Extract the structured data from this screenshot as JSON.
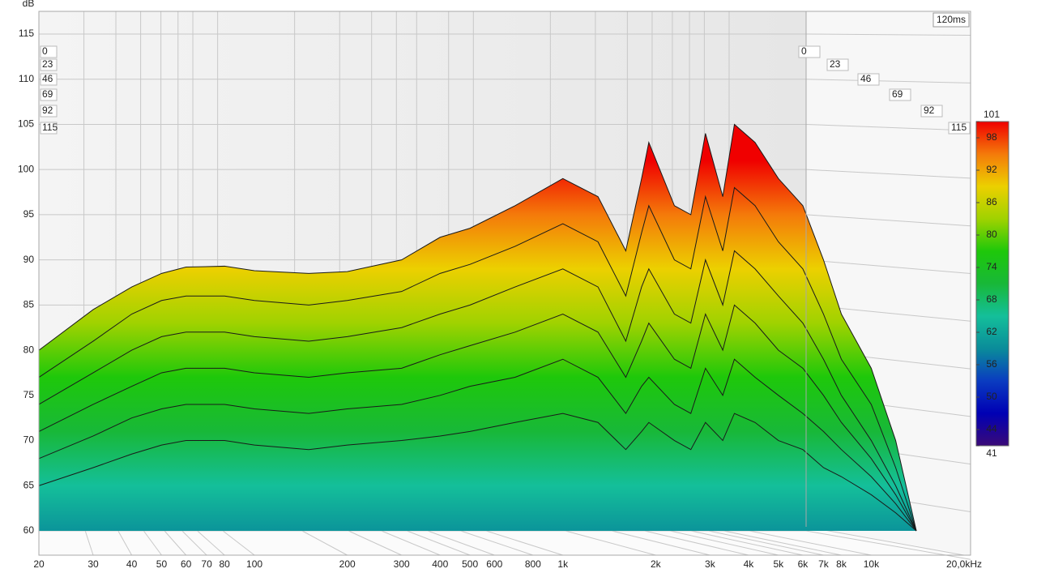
{
  "chart_data": {
    "type": "waterfall",
    "ylabel": "dB",
    "zlabel": "120ms",
    "x": [
      20,
      30,
      40,
      50,
      60,
      80,
      100,
      150,
      200,
      300,
      400,
      500,
      700,
      1000,
      1300,
      1600,
      1800,
      1900,
      2300,
      2600,
      2900,
      3300,
      3600,
      4200,
      5000,
      6000,
      7000,
      8000,
      10000,
      12000,
      14000
    ],
    "series": [
      {
        "name": "0",
        "values": [
          80,
          84.5,
          87,
          88.5,
          89.2,
          89.3,
          88.8,
          88.5,
          88.7,
          90,
          92.5,
          93.5,
          96,
          99,
          97,
          91,
          99,
          103,
          96,
          95,
          104,
          97,
          105,
          103,
          99,
          96,
          90,
          84,
          78,
          70,
          60
        ]
      },
      {
        "name": "23",
        "values": [
          77,
          81,
          84,
          85.5,
          86,
          86,
          85.5,
          85,
          85.5,
          86.5,
          88.5,
          89.5,
          91.5,
          94,
          92,
          86,
          93,
          96,
          90,
          89,
          97,
          91,
          98,
          96,
          92,
          89,
          84,
          79,
          74,
          67,
          60
        ]
      },
      {
        "name": "46",
        "values": [
          74,
          77.5,
          80,
          81.5,
          82,
          82,
          81.5,
          81,
          81.5,
          82.5,
          84,
          85,
          87,
          89,
          87,
          81,
          87,
          89,
          84,
          83,
          90,
          85,
          91,
          89,
          86,
          83,
          79,
          75,
          70,
          65,
          60
        ]
      },
      {
        "name": "69",
        "values": [
          71,
          74,
          76,
          77.5,
          78,
          78,
          77.5,
          77,
          77.5,
          78,
          79.5,
          80.5,
          82,
          84,
          82,
          77,
          81,
          83,
          79,
          78,
          84,
          80,
          85,
          83,
          80,
          78,
          75,
          72,
          68,
          64,
          60
        ]
      },
      {
        "name": "92",
        "values": [
          68,
          70.5,
          72.5,
          73.5,
          74,
          74,
          73.5,
          73,
          73.5,
          74,
          75,
          76,
          77,
          79,
          77,
          73,
          76,
          77,
          74,
          73,
          78,
          75,
          79,
          77,
          75,
          73,
          71,
          69,
          66,
          63,
          60
        ]
      },
      {
        "name": "115",
        "values": [
          65,
          67,
          68.5,
          69.5,
          70,
          70,
          69.5,
          69,
          69.5,
          70,
          70.5,
          71,
          72,
          73,
          72,
          69,
          71,
          72,
          70,
          69,
          72,
          70,
          73,
          72,
          70,
          69,
          67,
          66,
          64,
          62,
          60
        ]
      }
    ],
    "xlog": true,
    "xlim": [
      20,
      20000
    ],
    "xticks": [
      20,
      30,
      40,
      50,
      60,
      70,
      80,
      100,
      200,
      300,
      400,
      500,
      600,
      800,
      {
        "value": 1000,
        "label": "1k"
      },
      {
        "value": 2000,
        "label": "2k"
      },
      {
        "value": 3000,
        "label": "3k"
      },
      {
        "value": 4000,
        "label": "4k"
      },
      {
        "value": 5000,
        "label": "5k"
      },
      {
        "value": 6000,
        "label": "6k"
      },
      {
        "value": 7000,
        "label": "7k"
      },
      {
        "value": 8000,
        "label": "8k"
      },
      {
        "value": 10000,
        "label": "10k"
      },
      {
        "value": 20000,
        "label": "20,0kHz"
      }
    ],
    "ylim": [
      60,
      115
    ],
    "yticks": [
      60,
      65,
      70,
      75,
      80,
      85,
      90,
      95,
      100,
      105,
      110,
      115
    ],
    "grid": true,
    "colorbar": {
      "lim": [
        41,
        101
      ],
      "ticks": [
        101,
        98,
        92,
        86,
        80,
        74,
        68,
        62,
        56,
        50,
        44,
        41
      ],
      "stops": [
        {
          "value": 41,
          "color": "#3a0a78"
        },
        {
          "value": 47,
          "color": "#0000b4"
        },
        {
          "value": 53,
          "color": "#0a3cc0"
        },
        {
          "value": 59,
          "color": "#0a8c9a"
        },
        {
          "value": 65,
          "color": "#14bf9a"
        },
        {
          "value": 71,
          "color": "#18b838"
        },
        {
          "value": 77,
          "color": "#1ec80a"
        },
        {
          "value": 83,
          "color": "#a0d200"
        },
        {
          "value": 89,
          "color": "#ecd000"
        },
        {
          "value": 95,
          "color": "#f47a0a"
        },
        {
          "value": 101,
          "color": "#f00000"
        }
      ]
    }
  }
}
